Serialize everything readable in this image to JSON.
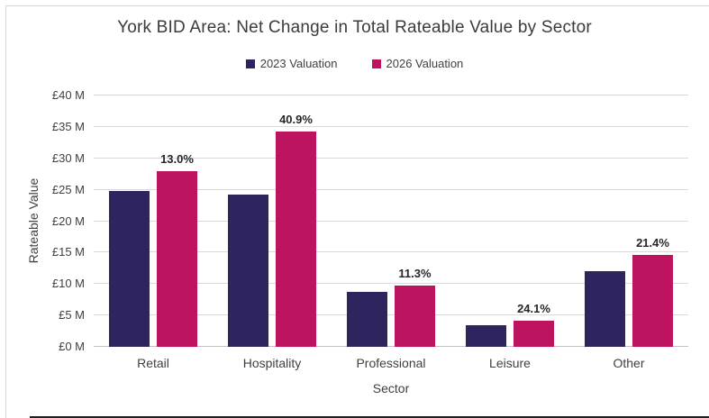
{
  "title": "York BID Area: Net Change in Total Rateable Value by Sector",
  "legend": [
    {
      "label": "2023 Valuation",
      "color": "#2e255f"
    },
    {
      "label": "2026 Valuation",
      "color": "#bc145e"
    }
  ],
  "colors": {
    "series_2023": "#2e255f",
    "series_2026": "#bc145e",
    "gridline": "#d9d9d9",
    "text": "#404040"
  },
  "chart_data": {
    "type": "bar",
    "title": "York BID Area: Net Change in Total Rateable Value by Sector",
    "xlabel": "Sector",
    "ylabel": "Rateable Value",
    "categories": [
      "Retail",
      "Hospitality",
      "Professional",
      "Leisure",
      "Other"
    ],
    "series": [
      {
        "name": "2023 Valuation",
        "color": "#2e255f",
        "values": [
          24.8,
          24.3,
          8.7,
          3.4,
          12.0
        ]
      },
      {
        "name": "2026 Valuation",
        "color": "#bc145e",
        "values": [
          28.0,
          34.2,
          9.7,
          4.2,
          14.6
        ]
      }
    ],
    "bar_labels": {
      "series": "2026 Valuation",
      "values": [
        "13.0%",
        "40.9%",
        "11.3%",
        "24.1%",
        "21.4%"
      ]
    },
    "ylim": [
      0,
      40
    ],
    "ytick_step": 5,
    "ytick_labels": [
      "£0 M",
      "£5 M",
      "£10 M",
      "£15 M",
      "£20 M",
      "£25 M",
      "£30 M",
      "£35 M",
      "£40 M"
    ],
    "grid": true,
    "legend_position": "top",
    "units": "£M"
  }
}
